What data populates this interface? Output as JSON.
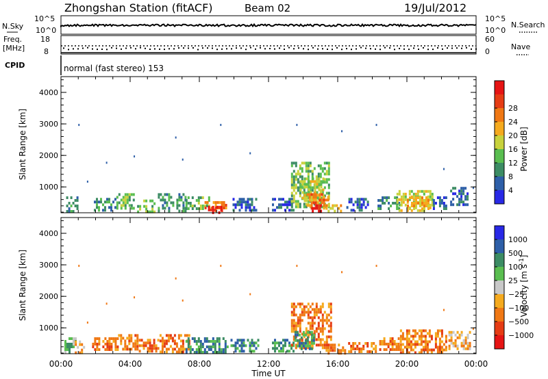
{
  "header": {
    "station": "Zhongshan Station (fitACF)",
    "beam": "Beam 02",
    "date": "19/Jul/2012"
  },
  "top_panels": {
    "nsky_label": "N.Sky",
    "nsearch_label": "N.Search",
    "noise_ticks_left": [
      "10^5",
      "10^0"
    ],
    "noise_ticks_right": [
      "10^5",
      "10^0"
    ],
    "freq_label_line1": "Freq.",
    "freq_label_line2": "[MHz]",
    "freq_ticks": [
      "18",
      "8"
    ],
    "nave_label": "Nave",
    "nave_ticks": [
      "60",
      "0"
    ],
    "cpid_label": "CPID",
    "cpid_text": "normal (fast stereo) 153"
  },
  "colors": {
    "power": [
      "#2828e6",
      "#2e5fa8",
      "#3c8c64",
      "#5abe50",
      "#c8d23c",
      "#f5aa1e",
      "#f07814",
      "#e63c14",
      "#e61414"
    ],
    "velocity": [
      "#2828e6",
      "#2e5fa8",
      "#3c8c64",
      "#5abe50",
      "#c8c8c8",
      "#f5aa1e",
      "#f07814",
      "#e63c14",
      "#e61414"
    ]
  },
  "chart_data": [
    {
      "type": "heatmap",
      "name": "power",
      "ylabel": "Slant Range [km]",
      "ylim": [
        180,
        4500
      ],
      "xlim": [
        0,
        24
      ],
      "y_ticks": [
        1000,
        2000,
        3000,
        4000
      ],
      "colorbar_label": "Power [dB]",
      "colorbar_ticks": [
        "4",
        "8",
        "12",
        "16",
        "20",
        "24",
        "28"
      ],
      "patches": [
        {
          "t0": 0.3,
          "t1": 1.0,
          "r0": 200,
          "r1": 700,
          "level": 2
        },
        {
          "t0": 1.9,
          "t1": 3.2,
          "r0": 250,
          "r1": 650,
          "level": 2
        },
        {
          "t0": 3.2,
          "t1": 4.2,
          "r0": 300,
          "r1": 800,
          "level": 3
        },
        {
          "t0": 4.4,
          "t1": 5.4,
          "r0": 250,
          "r1": 600,
          "level": 3
        },
        {
          "t0": 5.6,
          "t1": 7.2,
          "r0": 250,
          "r1": 800,
          "level": 2
        },
        {
          "t0": 7.2,
          "t1": 8.6,
          "r0": 300,
          "r1": 700,
          "level": 3
        },
        {
          "t0": 8.3,
          "t1": 9.6,
          "r0": 250,
          "r1": 550,
          "level": 6
        },
        {
          "t0": 8.5,
          "t1": 9.3,
          "r0": 220,
          "r1": 400,
          "level": 8
        },
        {
          "t0": 9.8,
          "t1": 11.3,
          "r0": 250,
          "r1": 650,
          "level": 1
        },
        {
          "t0": 12.2,
          "t1": 13.4,
          "r0": 280,
          "r1": 650,
          "level": 1
        },
        {
          "t0": 13.3,
          "t1": 15.5,
          "r0": 400,
          "r1": 1800,
          "level": 3
        },
        {
          "t0": 13.8,
          "t1": 15.2,
          "r0": 600,
          "r1": 1300,
          "level": 4
        },
        {
          "t0": 14.2,
          "t1": 15.4,
          "r0": 300,
          "r1": 800,
          "level": 6
        },
        {
          "t0": 14.5,
          "t1": 15.0,
          "r0": 250,
          "r1": 450,
          "level": 8
        },
        {
          "t0": 15.3,
          "t1": 16.2,
          "r0": 200,
          "r1": 450,
          "level": 5
        },
        {
          "t0": 16.5,
          "t1": 17.8,
          "r0": 300,
          "r1": 650,
          "level": 1
        },
        {
          "t0": 18.3,
          "t1": 19.5,
          "r0": 300,
          "r1": 700,
          "level": 2
        },
        {
          "t0": 19.4,
          "t1": 21.5,
          "r0": 250,
          "r1": 900,
          "level": 4
        },
        {
          "t0": 20.0,
          "t1": 21.2,
          "r0": 300,
          "r1": 700,
          "level": 5
        },
        {
          "t0": 21.5,
          "t1": 22.3,
          "r0": 300,
          "r1": 700,
          "level": 1
        },
        {
          "t0": 22.5,
          "t1": 23.5,
          "r0": 400,
          "r1": 1000,
          "level": 1
        }
      ]
    },
    {
      "type": "heatmap",
      "name": "velocity",
      "ylabel": "Slant Range [km]",
      "xlabel": "Time UT",
      "ylim": [
        180,
        4500
      ],
      "xlim": [
        0,
        24
      ],
      "y_ticks": [
        1000,
        2000,
        3000,
        4000
      ],
      "x_tick_labels": [
        "00:00",
        "04:00",
        "08:00",
        "12:00",
        "16:00",
        "20:00",
        "00:00"
      ],
      "colorbar_label": "Velocity [m s^-1]",
      "colorbar_ticks": [
        "1000",
        "500",
        "100",
        "25",
        "−25",
        "−100",
        "−500",
        "−1000"
      ],
      "patches": [
        {
          "t0": 0.2,
          "t1": 0.8,
          "r0": 200,
          "r1": 700,
          "level": 3
        },
        {
          "t0": 0.8,
          "t1": 1.3,
          "r0": 200,
          "r1": 600,
          "level": 5
        },
        {
          "t0": 1.8,
          "t1": 3.3,
          "r0": 300,
          "r1": 700,
          "level": 6
        },
        {
          "t0": 3.3,
          "t1": 4.4,
          "r0": 300,
          "r1": 800,
          "level": 6
        },
        {
          "t0": 4.5,
          "t1": 5.6,
          "r0": 250,
          "r1": 650,
          "level": 6
        },
        {
          "t0": 5.7,
          "t1": 7.4,
          "r0": 250,
          "r1": 800,
          "level": 6
        },
        {
          "t0": 7.2,
          "t1": 9.6,
          "r0": 250,
          "r1": 700,
          "level": 2
        },
        {
          "t0": 9.8,
          "t1": 11.4,
          "r0": 250,
          "r1": 650,
          "level": 2
        },
        {
          "t0": 12.2,
          "t1": 13.4,
          "r0": 280,
          "r1": 650,
          "level": 2
        },
        {
          "t0": 13.3,
          "t1": 15.6,
          "r0": 400,
          "r1": 1800,
          "level": 6
        },
        {
          "t0": 13.5,
          "t1": 14.6,
          "r0": 300,
          "r1": 900,
          "level": 2
        },
        {
          "t0": 15.3,
          "t1": 16.4,
          "r0": 200,
          "r1": 500,
          "level": 6
        },
        {
          "t0": 16.6,
          "t1": 18.2,
          "r0": 220,
          "r1": 550,
          "level": 6
        },
        {
          "t0": 18.4,
          "t1": 19.6,
          "r0": 300,
          "r1": 700,
          "level": 6
        },
        {
          "t0": 19.6,
          "t1": 22.3,
          "r0": 250,
          "r1": 950,
          "level": 6
        },
        {
          "t0": 22.4,
          "t1": 23.6,
          "r0": 350,
          "r1": 900,
          "level": 5
        }
      ]
    }
  ]
}
